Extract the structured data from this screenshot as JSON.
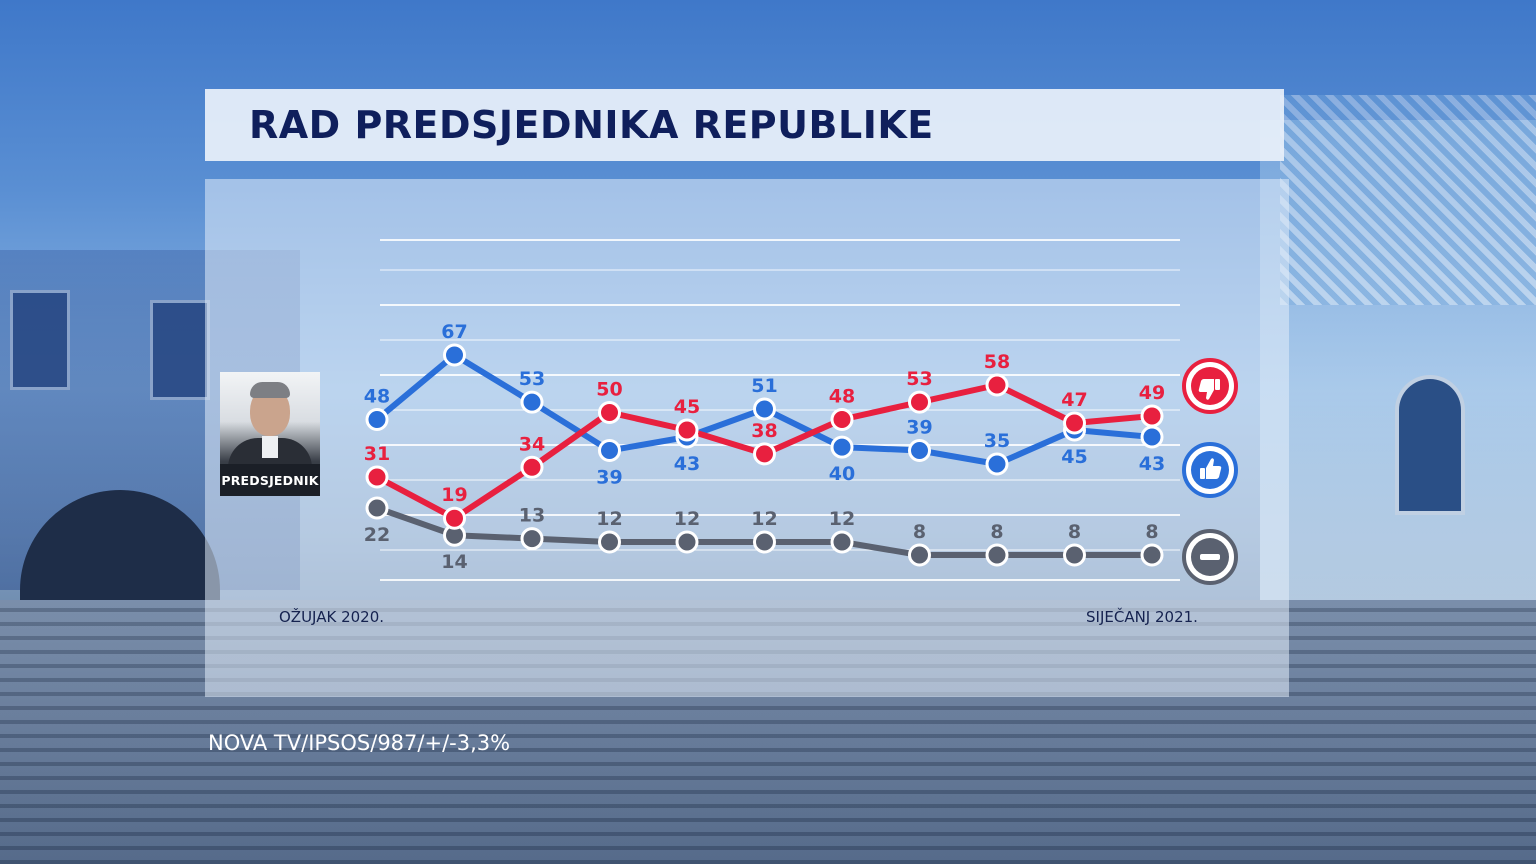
{
  "title": "RAD PREDSJEDNIKA REPUBLIKE",
  "source": "NOVA TV/IPSOS/987/+/-3,3%",
  "photo_label": "PREDSJEDNIK",
  "x_start_label": "OŽUJAK 2020.",
  "x_end_label": "SIJEČANJ 2021.",
  "colors": {
    "negative": "#e8203f",
    "positive": "#2a6fd9",
    "neutral": "#5a6170"
  },
  "legend": {
    "negative_icon": "thumbs-down-icon",
    "positive_icon": "thumbs-up-icon",
    "neutral_icon": "minus-icon"
  },
  "chart_data": {
    "type": "line",
    "title": "RAD PREDSJEDNIKA REPUBLIKE",
    "x_points": 11,
    "x_first_label": "OŽUJAK 2020.",
    "x_last_label": "SIJEČANJ 2021.",
    "ylim": [
      0,
      80
    ],
    "grid": true,
    "series": [
      {
        "key": "negative",
        "values": [
          31,
          19,
          34,
          50,
          45,
          38,
          48,
          53,
          58,
          47,
          49
        ]
      },
      {
        "key": "positive",
        "values": [
          48,
          67,
          53,
          39,
          43,
          51,
          40,
          39,
          35,
          45,
          43
        ]
      },
      {
        "key": "neutral",
        "values": [
          22,
          14,
          13,
          12,
          12,
          12,
          12,
          8,
          8,
          8,
          8
        ]
      }
    ]
  }
}
